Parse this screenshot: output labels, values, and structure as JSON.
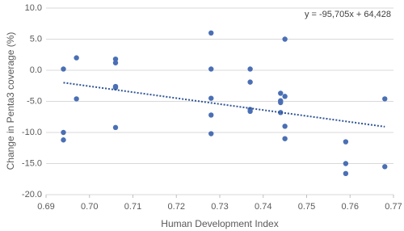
{
  "chart_data": {
    "type": "scatter",
    "xlabel": "Human Development Index",
    "ylabel": "Change in  Penta3 coverage (%)",
    "series": [
      {
        "color": "#4a6fb5",
        "x": [
          0.694,
          0.694,
          0.694,
          0.697,
          0.697,
          0.706,
          0.706,
          0.706,
          0.706,
          0.706,
          0.728,
          0.728,
          0.728,
          0.728,
          0.728,
          0.737,
          0.737,
          0.737,
          0.737,
          0.744,
          0.744,
          0.744,
          0.744,
          0.745,
          0.745,
          0.745,
          0.745,
          0.759,
          0.759,
          0.759,
          0.768,
          0.768
        ],
        "values": [
          0.2,
          -10.0,
          -11.2,
          2.0,
          -4.6,
          1.8,
          1.2,
          -2.6,
          -2.8,
          -9.2,
          6.0,
          0.2,
          -4.5,
          -7.2,
          -10.2,
          0.2,
          -1.9,
          -6.3,
          -6.6,
          -3.7,
          -4.9,
          -5.2,
          -6.8,
          5.0,
          -4.2,
          -9.0,
          -11.0,
          -11.5,
          -15.0,
          -16.6,
          -4.6,
          -15.5
        ]
      }
    ],
    "trendline": {
      "label": "y = -95,705x + 64,428",
      "slope": -95.705,
      "intercept": 64.428,
      "color": "#2f5597"
    },
    "xlim": [
      0.69,
      0.77
    ],
    "xticks": [
      {
        "value": 0.69,
        "label": "0.69"
      },
      {
        "value": 0.7,
        "label": "0.70"
      },
      {
        "value": 0.71,
        "label": "0.71"
      },
      {
        "value": 0.72,
        "label": "0.72"
      },
      {
        "value": 0.73,
        "label": "0.73"
      },
      {
        "value": 0.74,
        "label": "0.74"
      },
      {
        "value": 0.75,
        "label": "0.75"
      },
      {
        "value": 0.76,
        "label": "0.76"
      },
      {
        "value": 0.77,
        "label": "0.77"
      }
    ],
    "ylim": [
      -20,
      10
    ],
    "yticks": [
      {
        "value": -20,
        "label": "-20.0"
      },
      {
        "value": -15,
        "label": "-15.0"
      },
      {
        "value": -10,
        "label": "-10.0"
      },
      {
        "value": -5,
        "label": "-5.0"
      },
      {
        "value": 0,
        "label": "0.0"
      },
      {
        "value": 5,
        "label": "5.0"
      },
      {
        "value": 10,
        "label": "10.0"
      }
    ],
    "grid": true
  }
}
